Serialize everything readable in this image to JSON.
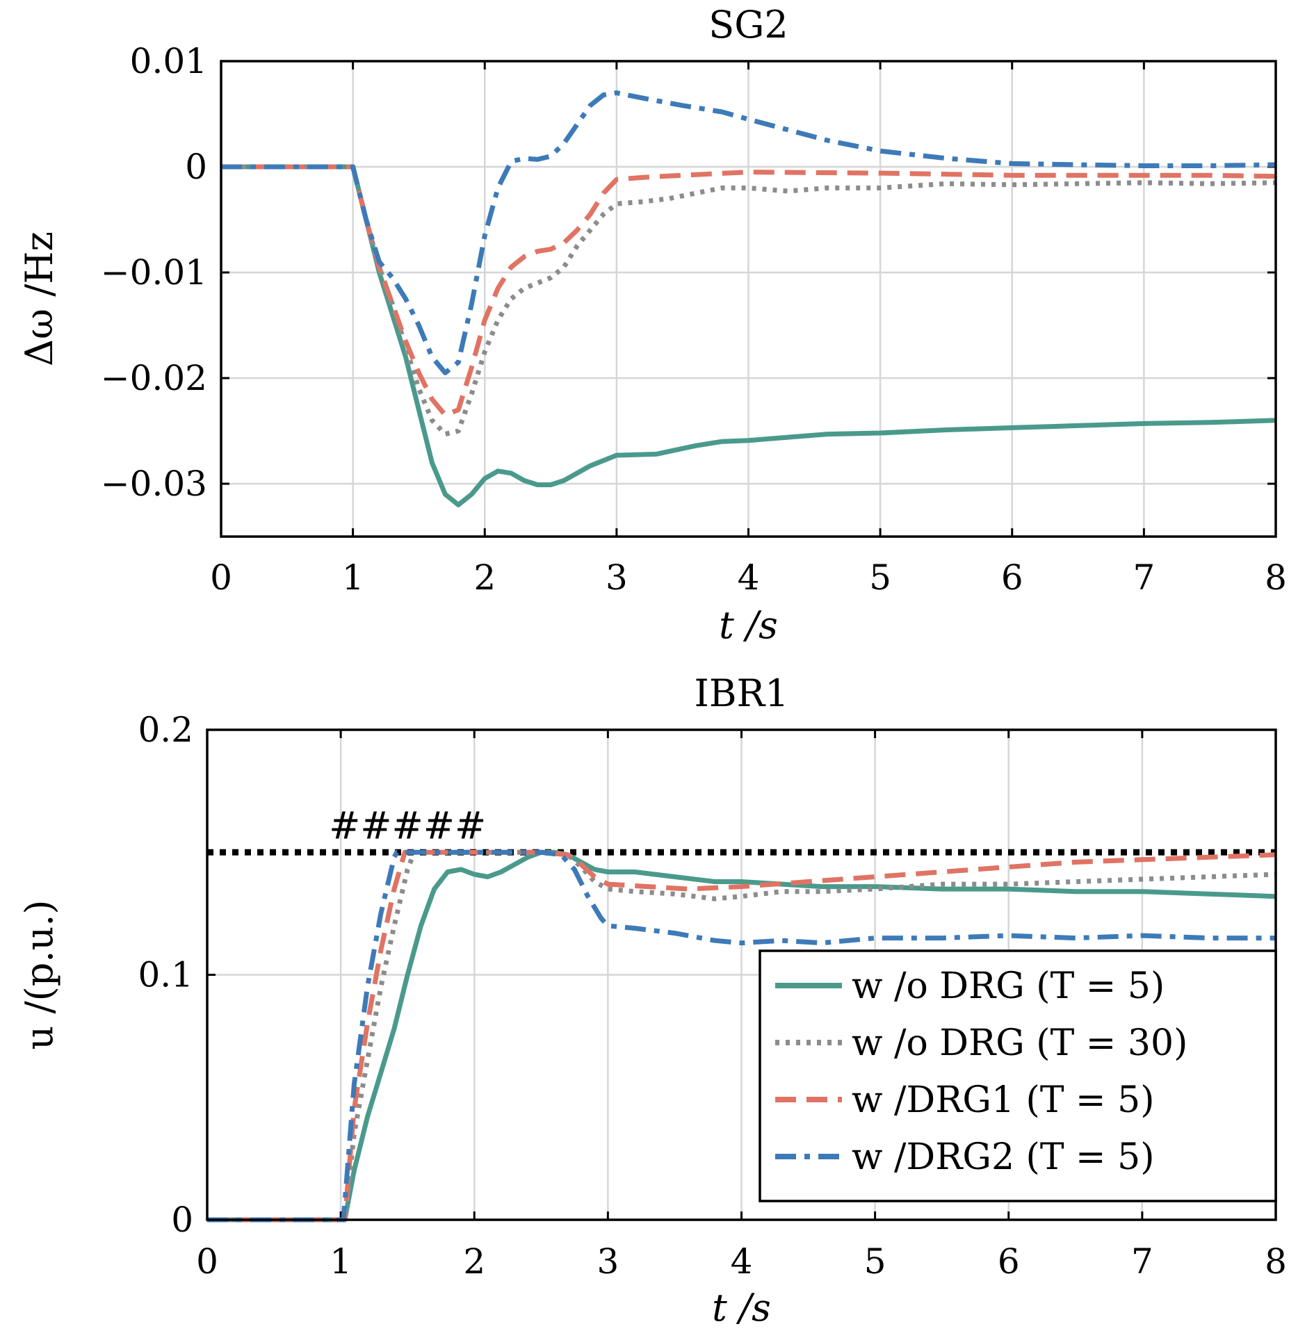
{
  "chart_data": [
    {
      "type": "line",
      "title": "SG2",
      "xlabel": "t /s",
      "ylabel": "Δω /Hz",
      "xlim": [
        0,
        8
      ],
      "ylim": [
        -0.035,
        0.01
      ],
      "xticks": [
        0,
        1,
        2,
        3,
        4,
        5,
        6,
        7,
        8
      ],
      "xtick_labels": [
        "0",
        "1",
        "2",
        "3",
        "4",
        "5",
        "6",
        "7",
        "8"
      ],
      "yticks": [
        0.01,
        0,
        -0.01,
        -0.02,
        -0.03
      ],
      "ytick_labels": [
        "0.01",
        "0",
        "−0.01",
        "−0.02",
        "−0.03"
      ],
      "grid": true,
      "series": [
        {
          "color": "#4a9a8c",
          "style": "solid",
          "x": [
            0,
            1,
            1.1,
            1.2,
            1.3,
            1.4,
            1.5,
            1.6,
            1.7,
            1.8,
            1.9,
            2.0,
            2.1,
            2.2,
            2.3,
            2.4,
            2.5,
            2.6,
            2.8,
            3.0,
            3.3,
            3.6,
            3.8,
            4.0,
            4.3,
            4.6,
            5.0,
            5.5,
            6.0,
            6.5,
            7.0,
            7.5,
            8.0
          ],
          "y": [
            0,
            0,
            -0.005,
            -0.01,
            -0.014,
            -0.018,
            -0.023,
            -0.028,
            -0.031,
            -0.032,
            -0.031,
            -0.0295,
            -0.0288,
            -0.029,
            -0.0297,
            -0.0301,
            -0.0301,
            -0.0297,
            -0.0283,
            -0.0273,
            -0.0272,
            -0.0264,
            -0.026,
            -0.0259,
            -0.0256,
            -0.0253,
            -0.0252,
            -0.0249,
            -0.0247,
            -0.0245,
            -0.0243,
            -0.0242,
            -0.024
          ]
        },
        {
          "color": "#8c8c8c",
          "style": "dotted",
          "x": [
            0,
            1,
            1.1,
            1.2,
            1.3,
            1.4,
            1.5,
            1.6,
            1.7,
            1.8,
            1.9,
            2.0,
            2.1,
            2.2,
            2.3,
            2.4,
            2.5,
            2.6,
            2.7,
            2.8,
            2.9,
            3.0,
            3.2,
            3.4,
            3.6,
            3.8,
            4.0,
            4.3,
            4.6,
            5.0,
            5.5,
            6.0,
            6.5,
            7.0,
            7.5,
            8.0
          ],
          "y": [
            0,
            0,
            -0.005,
            -0.0095,
            -0.013,
            -0.017,
            -0.021,
            -0.024,
            -0.0253,
            -0.025,
            -0.0215,
            -0.0175,
            -0.0145,
            -0.0125,
            -0.0115,
            -0.011,
            -0.0105,
            -0.0095,
            -0.0075,
            -0.006,
            -0.0045,
            -0.0035,
            -0.0033,
            -0.003,
            -0.0025,
            -0.002,
            -0.002,
            -0.0023,
            -0.002,
            -0.002,
            -0.0016,
            -0.0017,
            -0.0016,
            -0.0015,
            -0.0016,
            -0.0015
          ]
        },
        {
          "color": "#e07363",
          "style": "dashed",
          "x": [
            0,
            1,
            1.1,
            1.2,
            1.3,
            1.4,
            1.5,
            1.6,
            1.7,
            1.8,
            1.9,
            2.0,
            2.1,
            2.2,
            2.3,
            2.4,
            2.5,
            2.6,
            2.7,
            2.8,
            2.9,
            3.0,
            3.2,
            3.5,
            4.0,
            5.0,
            6.0,
            7.0,
            7.5,
            8.0
          ],
          "y": [
            0,
            0,
            -0.005,
            -0.0095,
            -0.013,
            -0.0165,
            -0.0195,
            -0.022,
            -0.0235,
            -0.023,
            -0.019,
            -0.0145,
            -0.0115,
            -0.0095,
            -0.0085,
            -0.008,
            -0.0078,
            -0.0072,
            -0.006,
            -0.0045,
            -0.0025,
            -0.0012,
            -0.001,
            -0.0008,
            -0.0005,
            -0.0006,
            -0.0008,
            -0.0008,
            -0.0008,
            -0.0009
          ]
        },
        {
          "color": "#3d7ab8",
          "style": "dashdot",
          "x": [
            0,
            1,
            1.1,
            1.2,
            1.3,
            1.4,
            1.5,
            1.6,
            1.7,
            1.8,
            1.9,
            2.0,
            2.1,
            2.2,
            2.3,
            2.4,
            2.5,
            2.6,
            2.7,
            2.8,
            2.9,
            3.0,
            3.2,
            3.5,
            3.8,
            4.0,
            4.3,
            4.6,
            5.0,
            5.5,
            6.0,
            6.5,
            7.0,
            7.5,
            8.0
          ],
          "y": [
            0,
            0,
            -0.005,
            -0.009,
            -0.0105,
            -0.0125,
            -0.015,
            -0.018,
            -0.0195,
            -0.0185,
            -0.013,
            -0.0065,
            -0.002,
            0.0005,
            0.0008,
            0.0007,
            0.001,
            0.0022,
            0.004,
            0.0058,
            0.0068,
            0.007,
            0.0065,
            0.0058,
            0.0052,
            0.0045,
            0.0035,
            0.0025,
            0.0015,
            0.0008,
            0.0003,
            0.0002,
            0.0001,
            0.0001,
            0.0002
          ]
        }
      ]
    },
    {
      "type": "line",
      "title": "IBR1",
      "xlabel": "t /s",
      "ylabel": "u /(p.u.)",
      "xlim": [
        0,
        8
      ],
      "ylim": [
        0,
        0.2
      ],
      "xticks": [
        0,
        1,
        2,
        3,
        4,
        5,
        6,
        7,
        8
      ],
      "xtick_labels": [
        "0",
        "1",
        "2",
        "3",
        "4",
        "5",
        "6",
        "7",
        "8"
      ],
      "yticks": [
        0.2,
        0.1,
        0
      ],
      "ytick_labels": [
        "0.2",
        "0.1",
        "0"
      ],
      "grid": true,
      "annotation": "#####",
      "limit_line": {
        "y": 0.15,
        "color": "#000000",
        "style": "dotted"
      },
      "legend": {
        "position": "bottom-right",
        "entries": [
          {
            "label": "w /o DRG (T = 5)",
            "color": "#4a9a8c",
            "style": "solid"
          },
          {
            "label": "w /o DRG (T = 30)",
            "color": "#8c8c8c",
            "style": "dotted"
          },
          {
            "label": "w /DRG1 (T = 5)",
            "color": "#e07363",
            "style": "dashed"
          },
          {
            "label": "w /DRG2 (T = 5)",
            "color": "#3d7ab8",
            "style": "dashdot"
          }
        ]
      },
      "series": [
        {
          "color": "#4a9a8c",
          "style": "solid",
          "x": [
            0,
            1.03,
            1.1,
            1.2,
            1.3,
            1.4,
            1.5,
            1.6,
            1.7,
            1.8,
            1.9,
            2.0,
            2.1,
            2.2,
            2.3,
            2.4,
            2.5,
            2.6,
            2.7,
            2.8,
            2.9,
            3.0,
            3.2,
            3.5,
            3.8,
            4.0,
            4.3,
            4.6,
            5.0,
            5.5,
            6.0,
            6.5,
            7.0,
            7.5,
            8.0
          ],
          "y": [
            0,
            0,
            0.02,
            0.042,
            0.06,
            0.078,
            0.1,
            0.12,
            0.135,
            0.142,
            0.143,
            0.141,
            0.14,
            0.142,
            0.145,
            0.148,
            0.15,
            0.15,
            0.149,
            0.146,
            0.143,
            0.142,
            0.142,
            0.14,
            0.138,
            0.138,
            0.137,
            0.136,
            0.136,
            0.135,
            0.135,
            0.134,
            0.134,
            0.133,
            0.132
          ]
        },
        {
          "color": "#8c8c8c",
          "style": "dotted",
          "x": [
            0,
            1.03,
            1.1,
            1.2,
            1.3,
            1.4,
            1.5,
            1.55,
            1.6,
            2.0,
            2.5,
            2.7,
            2.8,
            2.9,
            3.0,
            3.2,
            3.5,
            3.8,
            4.0,
            4.3,
            4.6,
            5.0,
            5.5,
            6.0,
            6.5,
            7.0,
            7.5,
            8.0
          ],
          "y": [
            0,
            0,
            0.035,
            0.065,
            0.095,
            0.12,
            0.143,
            0.15,
            0.15,
            0.15,
            0.15,
            0.149,
            0.144,
            0.138,
            0.135,
            0.134,
            0.133,
            0.131,
            0.132,
            0.134,
            0.134,
            0.135,
            0.137,
            0.137,
            0.138,
            0.139,
            0.14,
            0.141
          ]
        },
        {
          "color": "#e07363",
          "style": "dashed",
          "x": [
            0,
            1.03,
            1.1,
            1.2,
            1.3,
            1.4,
            1.48,
            1.55,
            2.0,
            2.5,
            2.7,
            2.8,
            2.9,
            3.0,
            3.3,
            3.6,
            4.0,
            4.5,
            5.0,
            5.5,
            6.0,
            6.5,
            7.0,
            7.5,
            8.0
          ],
          "y": [
            0,
            0,
            0.045,
            0.08,
            0.11,
            0.135,
            0.15,
            0.15,
            0.15,
            0.15,
            0.149,
            0.145,
            0.14,
            0.137,
            0.136,
            0.135,
            0.136,
            0.138,
            0.14,
            0.142,
            0.144,
            0.146,
            0.147,
            0.148,
            0.149
          ]
        },
        {
          "color": "#3d7ab8",
          "style": "dashdot",
          "x": [
            0,
            1.02,
            1.1,
            1.2,
            1.3,
            1.4,
            1.42,
            2.0,
            2.5,
            2.65,
            2.75,
            2.85,
            2.95,
            3.0,
            3.2,
            3.5,
            3.8,
            4.0,
            4.3,
            4.6,
            5.0,
            5.5,
            6.0,
            6.5,
            7.0,
            7.5,
            8.0
          ],
          "y": [
            0,
            0,
            0.055,
            0.095,
            0.125,
            0.148,
            0.15,
            0.15,
            0.15,
            0.149,
            0.143,
            0.132,
            0.123,
            0.12,
            0.119,
            0.117,
            0.114,
            0.113,
            0.114,
            0.113,
            0.115,
            0.115,
            0.116,
            0.115,
            0.116,
            0.115,
            0.115
          ]
        }
      ]
    }
  ]
}
